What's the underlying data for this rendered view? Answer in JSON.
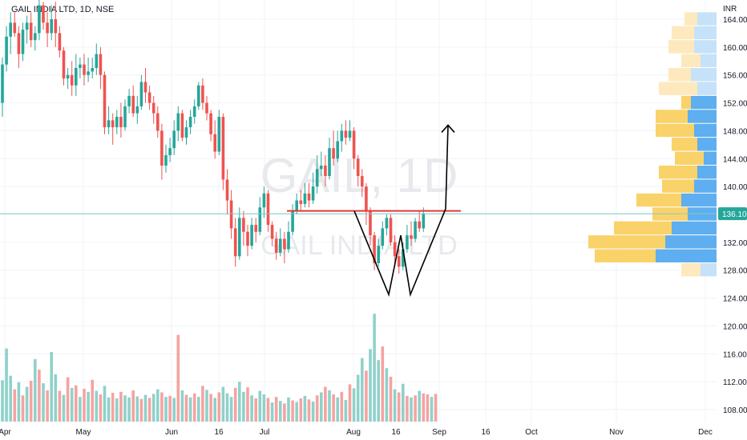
{
  "chart_data": {
    "type": "candlestick",
    "title": "GAIL INDIA LTD, 1D, NSE",
    "watermark": {
      "top": "GAIL, 1D",
      "bottom": "GAIL INDIA LTD"
    },
    "currency": "INR",
    "last_price": "136.10",
    "ylim": [
      106,
      166
    ],
    "y_ticks": [
      108,
      112,
      116,
      120,
      124,
      128,
      132,
      136,
      140,
      144,
      148,
      152,
      156,
      160,
      164
    ],
    "x_ticks": [
      "Apr",
      "May",
      "Jun",
      "16",
      "Jul",
      "Aug",
      "16",
      "Sep",
      "16",
      "Oct",
      "Nov",
      "Dec"
    ],
    "grid": true,
    "colors": {
      "up": "#26a69a",
      "down": "#ef5350",
      "up_vol": "#8fd1ca",
      "down_vol": "#f5a3a1",
      "horizontal_line": "#e53935",
      "price_line": "#80cbc4",
      "price_label_bg": "#26a69a",
      "vp_up": "#5eaef0",
      "vp_down": "#fad26a",
      "vp_up_light": "#c6e2f8",
      "vp_down_light": "#fde9bd"
    },
    "candles": [
      [
        152.0,
        157.5,
        150.0,
        158.5
      ],
      [
        157.5,
        161.5,
        156.5,
        163.0
      ],
      [
        161.5,
        163.5,
        159.0,
        165.0
      ],
      [
        163.5,
        162.0,
        161.5,
        165.0
      ],
      [
        162.0,
        159.0,
        157.0,
        163.0
      ],
      [
        159.0,
        162.5,
        158.0,
        163.5
      ],
      [
        162.5,
        163.5,
        160.5,
        164.5
      ],
      [
        163.5,
        161.0,
        160.0,
        165.0
      ],
      [
        161.0,
        162.0,
        159.5,
        163.0
      ],
      [
        162.0,
        166.0,
        161.0,
        167.0
      ],
      [
        166.0,
        163.5,
        162.5,
        166.5
      ],
      [
        163.5,
        162.0,
        160.0,
        165.0
      ],
      [
        162.0,
        164.0,
        161.0,
        166.0
      ],
      [
        164.0,
        162.0,
        160.0,
        166.5
      ],
      [
        162.0,
        159.5,
        158.5,
        163.0
      ],
      [
        159.5,
        155.5,
        154.5,
        160.0
      ],
      [
        155.5,
        156.0,
        154.0,
        157.0
      ],
      [
        156.0,
        154.5,
        153.0,
        158.0
      ],
      [
        154.5,
        157.0,
        153.0,
        159.0
      ],
      [
        157.0,
        157.5,
        155.5,
        158.5
      ],
      [
        157.5,
        156.0,
        154.5,
        159.0
      ],
      [
        156.0,
        156.5,
        155.0,
        158.5
      ],
      [
        156.5,
        157.0,
        155.5,
        158.5
      ],
      [
        157.0,
        159.0,
        156.0,
        160.5
      ],
      [
        159.0,
        156.0,
        154.0,
        160.0
      ],
      [
        156.0,
        148.5,
        147.5,
        156.5
      ],
      [
        148.5,
        149.5,
        147.5,
        151.5
      ],
      [
        149.5,
        148.5,
        146.0,
        150.5
      ],
      [
        148.5,
        150.0,
        147.5,
        151.0
      ],
      [
        150.0,
        148.5,
        147.0,
        152.0
      ],
      [
        148.5,
        151.5,
        148.0,
        152.5
      ],
      [
        151.5,
        153.0,
        150.5,
        154.0
      ],
      [
        153.0,
        150.5,
        150.0,
        154.5
      ],
      [
        150.5,
        151.5,
        149.0,
        153.0
      ],
      [
        151.5,
        155.0,
        151.0,
        156.0
      ],
      [
        155.0,
        153.5,
        152.0,
        157.0
      ],
      [
        153.5,
        152.0,
        151.0,
        154.5
      ],
      [
        152.0,
        150.5,
        149.0,
        153.0
      ],
      [
        150.5,
        148.0,
        147.0,
        151.5
      ],
      [
        148.0,
        143.0,
        141.0,
        149.0
      ],
      [
        143.0,
        144.5,
        142.0,
        146.0
      ],
      [
        144.5,
        145.5,
        143.5,
        147.0
      ],
      [
        145.5,
        148.0,
        144.5,
        149.5
      ],
      [
        148.0,
        150.5,
        146.5,
        151.5
      ],
      [
        150.5,
        147.0,
        146.5,
        151.0
      ],
      [
        147.0,
        148.5,
        146.0,
        149.5
      ],
      [
        148.5,
        150.0,
        147.5,
        151.0
      ],
      [
        150.0,
        151.5,
        149.0,
        152.5
      ],
      [
        151.5,
        154.5,
        151.0,
        155.0
      ],
      [
        154.5,
        152.0,
        151.0,
        155.5
      ],
      [
        152.0,
        150.5,
        149.5,
        153.0
      ],
      [
        150.5,
        147.5,
        146.5,
        151.0
      ],
      [
        147.5,
        145.0,
        144.0,
        149.5
      ],
      [
        145.0,
        150.0,
        144.5,
        151.0
      ],
      [
        150.0,
        141.0,
        139.5,
        150.5
      ],
      [
        141.0,
        138.0,
        136.0,
        142.5
      ],
      [
        138.0,
        134.0,
        132.5,
        139.5
      ],
      [
        134.0,
        130.0,
        128.5,
        135.5
      ],
      [
        130.0,
        135.5,
        129.5,
        137.0
      ],
      [
        135.5,
        133.5,
        131.5,
        136.5
      ],
      [
        133.5,
        131.5,
        130.0,
        134.5
      ],
      [
        131.5,
        134.5,
        131.0,
        135.5
      ],
      [
        134.5,
        133.5,
        132.0,
        135.5
      ],
      [
        133.5,
        137.0,
        133.0,
        138.5
      ],
      [
        137.0,
        139.0,
        135.5,
        140.0
      ],
      [
        139.0,
        134.5,
        133.5,
        139.5
      ],
      [
        134.5,
        132.5,
        131.5,
        135.0
      ],
      [
        132.5,
        130.5,
        129.5,
        133.5
      ],
      [
        130.5,
        132.5,
        130.0,
        134.0
      ],
      [
        132.5,
        131.0,
        129.0,
        133.5
      ],
      [
        131.0,
        133.5,
        130.5,
        135.0
      ],
      [
        133.5,
        136.5,
        133.0,
        137.5
      ],
      [
        136.5,
        138.0,
        136.0,
        139.0
      ],
      [
        138.0,
        137.5,
        136.5,
        139.5
      ],
      [
        137.5,
        139.0,
        137.0,
        140.5
      ],
      [
        139.0,
        138.0,
        137.0,
        140.5
      ],
      [
        138.0,
        140.0,
        137.5,
        142.0
      ],
      [
        140.0,
        142.5,
        139.0,
        144.5
      ],
      [
        142.5,
        143.0,
        141.5,
        145.0
      ],
      [
        143.0,
        141.5,
        140.0,
        144.5
      ],
      [
        141.5,
        145.5,
        141.0,
        147.0
      ],
      [
        145.5,
        144.0,
        143.0,
        148.0
      ],
      [
        144.0,
        146.5,
        143.5,
        148.0
      ],
      [
        146.5,
        148.0,
        145.0,
        149.0
      ],
      [
        148.0,
        147.0,
        146.0,
        149.5
      ],
      [
        147.0,
        148.0,
        146.5,
        149.5
      ],
      [
        148.0,
        144.0,
        142.5,
        148.5
      ],
      [
        144.0,
        141.5,
        140.0,
        144.5
      ],
      [
        141.5,
        140.0,
        138.5,
        142.5
      ],
      [
        140.0,
        136.5,
        134.5,
        140.5
      ],
      [
        136.5,
        133.0,
        131.5,
        137.0
      ],
      [
        133.0,
        129.0,
        128.0,
        133.5
      ],
      [
        129.0,
        131.5,
        128.5,
        132.5
      ],
      [
        131.5,
        134.0,
        131.0,
        135.0
      ],
      [
        134.0,
        135.5,
        133.0,
        136.0
      ],
      [
        135.5,
        132.0,
        131.5,
        136.0
      ],
      [
        132.0,
        130.0,
        129.0,
        133.0
      ],
      [
        130.0,
        128.5,
        127.5,
        131.0
      ],
      [
        128.5,
        131.0,
        128.0,
        132.0
      ],
      [
        131.0,
        133.0,
        130.5,
        134.5
      ],
      [
        133.0,
        132.5,
        131.5,
        135.0
      ],
      [
        132.5,
        135.0,
        132.0,
        135.5
      ],
      [
        135.0,
        134.0,
        133.5,
        136.5
      ],
      [
        134.0,
        136.1,
        133.5,
        137.0
      ]
    ],
    "volume": [
      [
        8.2,
        1
      ],
      [
        14.5,
        1
      ],
      [
        9.1,
        1
      ],
      [
        6.4,
        0
      ],
      [
        7.8,
        1
      ],
      [
        5.2,
        0
      ],
      [
        6.9,
        1
      ],
      [
        8.1,
        0
      ],
      [
        12.4,
        1
      ],
      [
        10.3,
        0
      ],
      [
        7.6,
        1
      ],
      [
        6.2,
        0
      ],
      [
        13.8,
        1
      ],
      [
        9.4,
        1
      ],
      [
        6.1,
        0
      ],
      [
        5.3,
        1
      ],
      [
        8.8,
        0
      ],
      [
        6.7,
        1
      ],
      [
        7.2,
        0
      ],
      [
        4.9,
        1
      ],
      [
        6.5,
        0
      ],
      [
        5.9,
        1
      ],
      [
        8.3,
        0
      ],
      [
        6.1,
        1
      ],
      [
        5.4,
        0
      ],
      [
        7.1,
        1
      ],
      [
        4.8,
        1
      ],
      [
        5.7,
        0
      ],
      [
        4.6,
        1
      ],
      [
        5.9,
        0
      ],
      [
        5.2,
        1
      ],
      [
        4.8,
        1
      ],
      [
        6.2,
        0
      ],
      [
        5.0,
        1
      ],
      [
        4.5,
        0
      ],
      [
        5.3,
        1
      ],
      [
        4.7,
        0
      ],
      [
        5.5,
        1
      ],
      [
        6.4,
        1
      ],
      [
        5.8,
        0
      ],
      [
        4.9,
        1
      ],
      [
        5.1,
        0
      ],
      [
        4.7,
        1
      ],
      [
        17.2,
        0
      ],
      [
        6.2,
        1
      ],
      [
        5.3,
        0
      ],
      [
        4.8,
        1
      ],
      [
        5.6,
        0
      ],
      [
        4.9,
        1
      ],
      [
        7.1,
        0
      ],
      [
        6.3,
        1
      ],
      [
        5.5,
        0
      ],
      [
        4.7,
        1
      ],
      [
        5.8,
        0
      ],
      [
        6.9,
        1
      ],
      [
        5.6,
        1
      ],
      [
        4.9,
        1
      ],
      [
        6.7,
        0
      ],
      [
        7.9,
        1
      ],
      [
        5.9,
        1
      ],
      [
        6.8,
        0
      ],
      [
        5.2,
        1
      ],
      [
        4.6,
        0
      ],
      [
        6.1,
        1
      ],
      [
        5.4,
        1
      ],
      [
        4.7,
        0
      ],
      [
        3.8,
        1
      ],
      [
        4.9,
        0
      ],
      [
        4.1,
        1
      ],
      [
        3.6,
        0
      ],
      [
        4.8,
        1
      ],
      [
        4.2,
        0
      ],
      [
        3.9,
        1
      ],
      [
        4.6,
        0
      ],
      [
        5.1,
        1
      ],
      [
        4.4,
        0
      ],
      [
        4.0,
        1
      ],
      [
        5.2,
        0
      ],
      [
        5.8,
        1
      ],
      [
        6.9,
        0
      ],
      [
        6.2,
        1
      ],
      [
        5.4,
        0
      ],
      [
        4.8,
        1
      ],
      [
        5.9,
        0
      ],
      [
        4.3,
        1
      ],
      [
        7.4,
        0
      ],
      [
        6.6,
        1
      ],
      [
        9.3,
        1
      ],
      [
        12.6,
        1
      ],
      [
        10.1,
        0
      ],
      [
        14.4,
        1
      ],
      [
        21.4,
        1
      ],
      [
        12.2,
        1
      ],
      [
        14.9,
        0
      ],
      [
        10.6,
        1
      ],
      [
        8.9,
        0
      ],
      [
        6.4,
        1
      ],
      [
        5.8,
        0
      ],
      [
        7.5,
        1
      ],
      [
        5.1,
        0
      ],
      [
        4.8,
        1
      ],
      [
        5.2,
        0
      ],
      [
        6.1,
        1
      ],
      [
        5.6,
        0
      ],
      [
        5.4,
        0
      ],
      [
        4.9,
        1
      ],
      [
        5.5,
        0
      ]
    ],
    "volume_profile": [
      {
        "price": 164,
        "up": 6,
        "down": 4,
        "light": true
      },
      {
        "price": 162,
        "up": 7,
        "down": 7,
        "light": true
      },
      {
        "price": 160,
        "up": 7,
        "down": 8,
        "light": true
      },
      {
        "price": 158,
        "up": 5,
        "down": 6,
        "light": true
      },
      {
        "price": 156,
        "up": 8,
        "down": 7,
        "light": true
      },
      {
        "price": 154,
        "up": 6,
        "down": 12,
        "light": true
      },
      {
        "price": 152,
        "up": 8,
        "down": 3,
        "light": false
      },
      {
        "price": 150,
        "up": 9,
        "down": 10,
        "light": false
      },
      {
        "price": 148,
        "up": 7,
        "down": 12,
        "light": false
      },
      {
        "price": 146,
        "up": 6,
        "down": 8,
        "light": false
      },
      {
        "price": 144,
        "up": 4,
        "down": 9,
        "light": false
      },
      {
        "price": 142,
        "up": 6,
        "down": 12,
        "light": false
      },
      {
        "price": 140,
        "up": 7,
        "down": 10,
        "light": false
      },
      {
        "price": 138,
        "up": 11,
        "down": 14,
        "light": false
      },
      {
        "price": 136,
        "up": 9,
        "down": 11,
        "light": false
      },
      {
        "price": 134,
        "up": 14,
        "down": 18,
        "light": false
      },
      {
        "price": 132,
        "up": 16,
        "down": 24,
        "light": false
      },
      {
        "price": 130,
        "up": 19,
        "down": 19,
        "light": false
      },
      {
        "price": 128,
        "up": 5,
        "down": 6,
        "light": true
      }
    ],
    "annotations": [
      {
        "type": "horizontal_line",
        "price": 136.5,
        "x_from": "Jul",
        "x_to": "Sep"
      },
      {
        "type": "w_pattern",
        "points": [
          [
            136.5,
            "Aug-early"
          ],
          [
            124.5,
            "Aug"
          ],
          [
            133.0,
            "Aug-mid"
          ],
          [
            124.5,
            "Aug-late"
          ],
          [
            136.8,
            "Sep"
          ]
        ]
      },
      {
        "type": "arrow_up",
        "from": 136.8,
        "to": 148.8
      }
    ]
  }
}
